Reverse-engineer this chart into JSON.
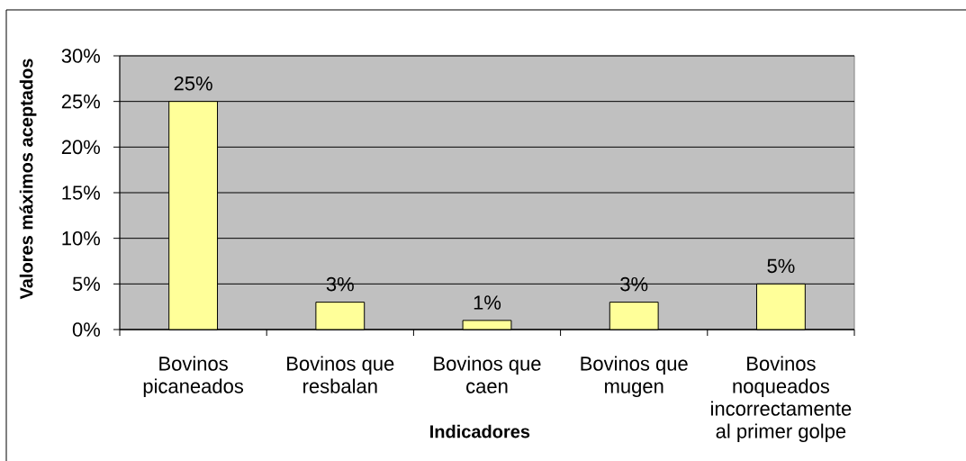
{
  "chart_data": {
    "type": "bar",
    "xlabel": "Indicadores",
    "ylabel": "Valores máximos aceptados",
    "categories": [
      "Bovinos picaneados",
      "Bovinos que resbalan",
      "Bovinos que caen",
      "Bovinos que mugen",
      "Bovinos noqueados incorrectamente al primer golpe"
    ],
    "values": [
      25,
      3,
      1,
      3,
      5
    ],
    "color": "#ffff99",
    "value_labels": [
      "25%",
      "3%",
      "1%",
      "3%",
      "5%"
    ],
    "ylim": [
      0,
      30
    ],
    "yticks": [
      {
        "value": 0,
        "label": "0%"
      },
      {
        "value": 5,
        "label": "5%"
      },
      {
        "value": 10,
        "label": "10%"
      },
      {
        "value": 15,
        "label": "15%"
      },
      {
        "value": 20,
        "label": "20%"
      },
      {
        "value": 25,
        "label": "25%"
      },
      {
        "value": 30,
        "label": "30%"
      }
    ],
    "grid": "y"
  }
}
